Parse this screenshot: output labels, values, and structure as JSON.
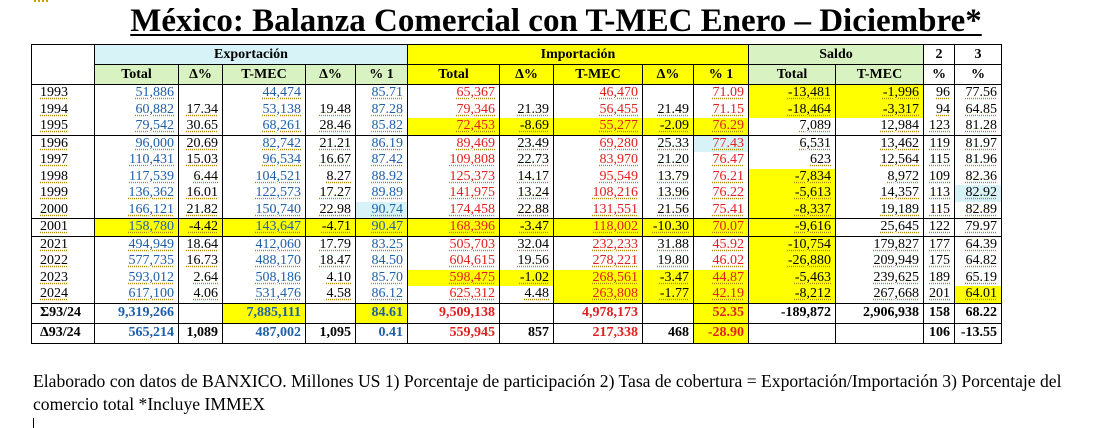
{
  "title": "México: Balanza Comercial con T-MEC Enero – Diciembre*",
  "header": {
    "exportacion": "Exportación",
    "importacion": "Importación",
    "saldo": "Saldo",
    "col2": "2",
    "col3": "3",
    "total": "Total",
    "delta": "Δ%",
    "tmec": "T-MEC",
    "pct1": "% 1",
    "pct": "%"
  },
  "rows": [
    {
      "year": "1993",
      "et": "51,886",
      "ed": "",
      "em": "44,474",
      "emd": "",
      "ep": "85.71",
      "it": "65,367",
      "id": "",
      "im": "46,470",
      "imd": "",
      "ip": "71.09",
      "st": "-13,481",
      "sm": "-1,996",
      "c2": "96",
      "c3": "77.56",
      "hl": [
        "st",
        "sm"
      ]
    },
    {
      "year": "1994",
      "et": "60,882",
      "ed": "17.34",
      "em": "53,138",
      "emd": "19.48",
      "ep": "87.28",
      "it": "79,346",
      "id": "21.39",
      "im": "56,455",
      "imd": "21.49",
      "ip": "71.15",
      "st": "-18,464",
      "sm": "-3,317",
      "c2": "94",
      "c3": "64.85",
      "hl": [
        "st",
        "sm"
      ]
    },
    {
      "year": "1995",
      "et": "79,542",
      "ed": "30.65",
      "em": "68,261",
      "emd": "28.46",
      "ep": "85.82",
      "it": "72,453",
      "id": "-8.69",
      "im": "55,277",
      "imd": "-2.09",
      "ip": "76.29",
      "st": "7,089",
      "sm": "12,984",
      "c2": "123",
      "c3": "81.28",
      "hl": [
        "it",
        "id",
        "im",
        "imd",
        "ip"
      ]
    },
    {
      "year": "1996",
      "et": "96,000",
      "ed": "20.69",
      "em": "82,742",
      "emd": "21.21",
      "ep": "86.19",
      "it": "89,469",
      "id": "23.49",
      "im": "69,280",
      "imd": "25.33",
      "ip": "77.43",
      "st": "6,531",
      "sm": "13,462",
      "c2": "119",
      "c3": "81.97",
      "hlc": [
        "ip"
      ]
    },
    {
      "year": "1997",
      "et": "110,431",
      "ed": "15.03",
      "em": "96,534",
      "emd": "16.67",
      "ep": "87.42",
      "it": "109,808",
      "id": "22.73",
      "im": "83,970",
      "imd": "21.20",
      "ip": "76.47",
      "st": "623",
      "sm": "12,564",
      "c2": "115",
      "c3": "81.96"
    },
    {
      "year": "1998",
      "et": "117,539",
      "ed": "6.44",
      "em": "104,521",
      "emd": "8.27",
      "ep": "88.92",
      "it": "125,373",
      "id": "14.17",
      "im": "95,549",
      "imd": "13.79",
      "ip": "76.21",
      "st": "-7,834",
      "sm": "8,972",
      "c2": "109",
      "c3": "82.36",
      "hl": [
        "st"
      ]
    },
    {
      "year": "1999",
      "et": "136,362",
      "ed": "16.01",
      "em": "122,573",
      "emd": "17.27",
      "ep": "89.89",
      "it": "141,975",
      "id": "13.24",
      "im": "108,216",
      "imd": "13.96",
      "ip": "76.22",
      "st": "-5,613",
      "sm": "14,357",
      "c2": "113",
      "c3": "82.92",
      "hl": [
        "st"
      ],
      "hlc": [
        "c3"
      ]
    },
    {
      "year": "2000",
      "et": "166,121",
      "ed": "21.82",
      "em": "150,740",
      "emd": "22.98",
      "ep": "90.74",
      "it": "174,458",
      "id": "22.88",
      "im": "131,551",
      "imd": "21.56",
      "ip": "75.41",
      "st": "-8,337",
      "sm": "19,189",
      "c2": "115",
      "c3": "82.89",
      "hl": [
        "st"
      ],
      "hlc": [
        "ep"
      ]
    },
    {
      "year": "2001",
      "et": "158,780",
      "ed": "-4.42",
      "em": "143,647",
      "emd": "-4.71",
      "ep": "90.47",
      "it": "168,396",
      "id": "-3.47",
      "im": "118,002",
      "imd": "-10.30",
      "ip": "70.07",
      "st": "-9,616",
      "sm": "25,645",
      "c2": "122",
      "c3": "79.97",
      "hl": [
        "et",
        "ed",
        "em",
        "emd",
        "ep",
        "it",
        "id",
        "im",
        "imd",
        "ip",
        "st"
      ]
    },
    {
      "year": "2021",
      "et": "494,949",
      "ed": "18.64",
      "em": "412,060",
      "emd": "17.79",
      "ep": "83.25",
      "it": "505,703",
      "id": "32.04",
      "im": "232,233",
      "imd": "31.88",
      "ip": "45.92",
      "st": "-10,754",
      "sm": "179,827",
      "c2": "177",
      "c3": "64.39",
      "hl": [
        "st"
      ]
    },
    {
      "year": "2022",
      "et": "577,735",
      "ed": "16.73",
      "em": "488,170",
      "emd": "18.47",
      "ep": "84.50",
      "it": "604,615",
      "id": "19.56",
      "im": "278,221",
      "imd": "19.80",
      "ip": "46.02",
      "st": "-26,880",
      "sm": "209,949",
      "c2": "175",
      "c3": "64.82",
      "hl": [
        "st"
      ]
    },
    {
      "year": "2023",
      "et": "593,012",
      "ed": "2.64",
      "em": "508,186",
      "emd": "4.10",
      "ep": "85.70",
      "it": "598,475",
      "id": "-1.02",
      "im": "268,561",
      "imd": "-3.47",
      "ip": "44.87",
      "st": "-5,463",
      "sm": "239,625",
      "c2": "189",
      "c3": "65.19",
      "hl": [
        "it",
        "id",
        "im",
        "imd",
        "ip",
        "st"
      ]
    },
    {
      "year": "2024",
      "et": "617,100",
      "ed": "4.06",
      "em": "531,476",
      "emd": "4.58",
      "ep": "86.12",
      "it": "625,312",
      "id": "4.48",
      "im": "263,808",
      "imd": "-1.77",
      "ip": "42.19",
      "st": "-8,212",
      "sm": "267,668",
      "c2": "201",
      "c3": "64.01",
      "hl": [
        "im",
        "imd",
        "ip",
        "st",
        "c3"
      ]
    }
  ],
  "sum": {
    "label": "Σ93/24",
    "et": "9,319,266",
    "ed": "",
    "em": "7,885,111",
    "emd": "",
    "ep": "84.61",
    "it": "9,509,138",
    "id": "",
    "im": "4,978,173",
    "imd": "",
    "ip": "52.35",
    "st": "-189,872",
    "sm": "2,906,938",
    "c2": "158",
    "c3": "68.22"
  },
  "delta": {
    "label": "Δ93/24",
    "et": "565,214",
    "ed": "1,089",
    "em": "487,002",
    "emd": "1,095",
    "ep": "0.41",
    "it": "559,945",
    "id": "857",
    "im": "217,338",
    "imd": "468",
    "ip": "-28.90",
    "st": "",
    "sm": "",
    "c2": "106",
    "c3": "-13.55"
  },
  "note": "Elaborado con datos de BANXICO. Millones US 1) Porcentaje de participación   2) Tasa de cobertura = Exportación/Importación 3) Porcentaje del comercio total *Incluye IMMEX"
}
